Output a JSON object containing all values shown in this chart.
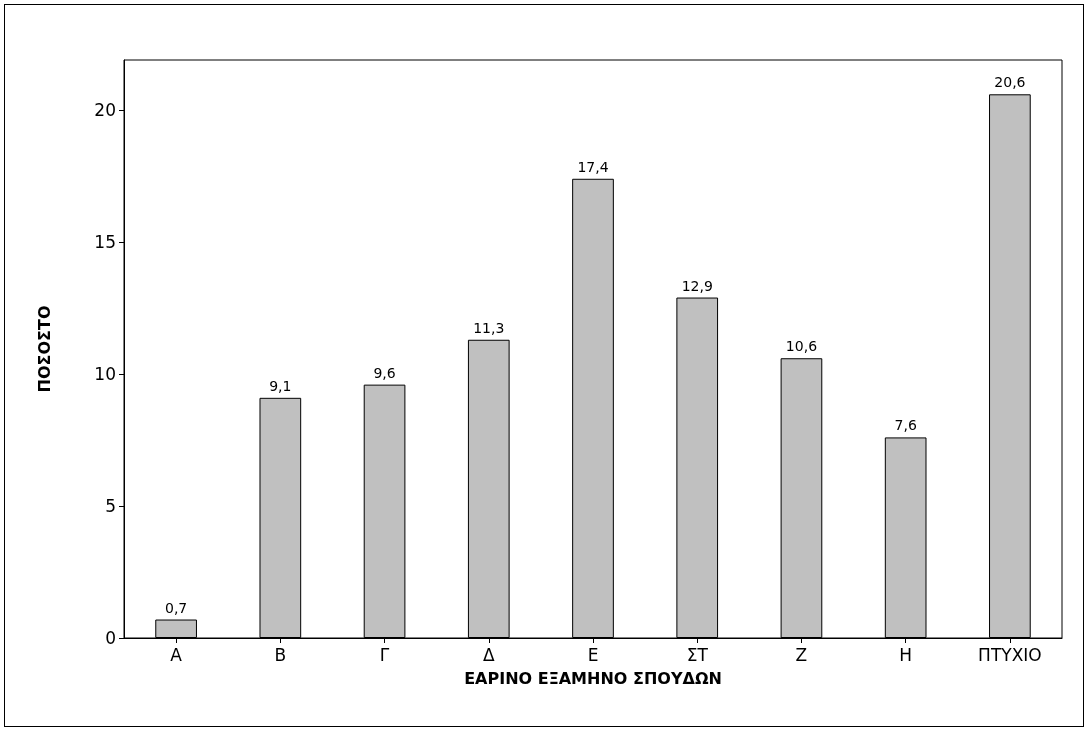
{
  "chart_data": {
    "type": "bar",
    "xlabel": "ΕΑΡΙΝΟ ΕΞΑΜΗΝΟ ΣΠΟΥΔΩΝ",
    "ylabel": "ΠΟΣΟΣΤΟ",
    "categories": [
      "Α",
      "Β",
      "Γ",
      "Δ",
      "Ε",
      "ΣΤ",
      "Ζ",
      "Η",
      "ΠΤΥΧΙΟ"
    ],
    "values": [
      0.7,
      9.1,
      9.6,
      11.3,
      17.4,
      12.9,
      10.6,
      7.6,
      20.6
    ],
    "value_labels": [
      "0,7",
      "9,1",
      "9,6",
      "11,3",
      "17,4",
      "12,9",
      "10,6",
      "7,6",
      "20,6"
    ],
    "color": "#c0c0c0",
    "ylim": [
      0,
      21.9
    ],
    "yticks": [
      0,
      5,
      10,
      15,
      20
    ]
  }
}
